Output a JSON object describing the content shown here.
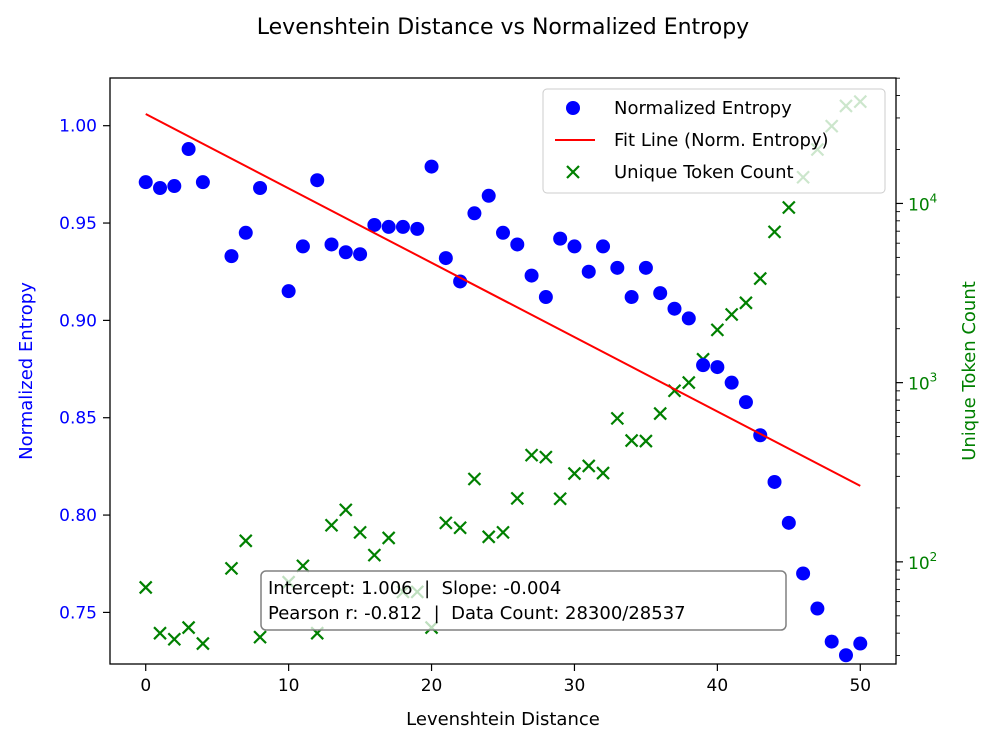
{
  "chart_data": {
    "type": "scatter",
    "title": "Levenshtein Distance vs Normalized Entropy",
    "xlabel": "Levenshtein Distance",
    "ylabel": "Normalized Entropy",
    "y2label": "Unique Token Count",
    "xlim": [
      -2.5,
      52.5
    ],
    "ylim": [
      0.7235,
      1.0245
    ],
    "y2lim_log10": [
      1.43,
      4.7
    ],
    "y2_scale": "log",
    "x_ticks": [
      0,
      10,
      20,
      30,
      40,
      50
    ],
    "y_ticks": [
      0.75,
      0.8,
      0.85,
      0.9,
      0.95,
      1.0
    ],
    "y2_ticks": [
      {
        "value": 100,
        "label": "10",
        "exp": "2"
      },
      {
        "value": 1000,
        "label": "10",
        "exp": "3"
      },
      {
        "value": 10000,
        "label": "10",
        "exp": "4"
      }
    ],
    "colors": {
      "entropy": "#0000ff",
      "fit": "#ff0000",
      "tokens": "#008000"
    },
    "legend_position": "top-right",
    "legend": [
      "Normalized Entropy",
      "Fit Line (Norm. Entropy)",
      "Unique Token Count"
    ],
    "fit_line": {
      "x": [
        0,
        50
      ],
      "y": [
        1.006,
        0.815
      ]
    },
    "annotation": {
      "line1": "Intercept: 1.006  |  Slope: -0.004",
      "line2": "Pearson r: -0.812  |  Data Count: 28300/28537"
    },
    "series": [
      {
        "name": "Normalized Entropy",
        "x": [
          0,
          1,
          2,
          3,
          4,
          6,
          7,
          8,
          10,
          11,
          12,
          13,
          14,
          15,
          16,
          17,
          18,
          19,
          20,
          21,
          22,
          23,
          24,
          25,
          26,
          27,
          28,
          29,
          30,
          31,
          32,
          33,
          34,
          35,
          36,
          37,
          38,
          39,
          40,
          41,
          42,
          43,
          44,
          45,
          46,
          47,
          48,
          49,
          50
        ],
        "y": [
          0.971,
          0.968,
          0.969,
          0.988,
          0.971,
          0.933,
          0.945,
          0.968,
          0.915,
          0.938,
          0.972,
          0.939,
          0.935,
          0.934,
          0.949,
          0.948,
          0.948,
          0.947,
          0.979,
          0.932,
          0.92,
          0.955,
          0.964,
          0.945,
          0.939,
          0.923,
          0.912,
          0.942,
          0.938,
          0.925,
          0.938,
          0.927,
          0.912,
          0.927,
          0.914,
          0.906,
          0.901,
          0.877,
          0.876,
          0.868,
          0.858,
          0.841,
          0.817,
          0.796,
          0.77,
          0.752,
          0.735,
          0.728,
          0.734
        ]
      },
      {
        "name": "Unique Token Count",
        "x": [
          0,
          1,
          2,
          3,
          4,
          6,
          7,
          8,
          10,
          11,
          12,
          13,
          14,
          15,
          16,
          17,
          18,
          19,
          20,
          21,
          22,
          23,
          24,
          25,
          26,
          27,
          28,
          29,
          30,
          31,
          32,
          33,
          34,
          35,
          36,
          37,
          38,
          39,
          40,
          41,
          42,
          43,
          44,
          45,
          46,
          47,
          48,
          49,
          50
        ],
        "y": [
          72,
          40,
          37,
          43,
          35,
          92,
          131,
          38,
          77,
          95,
          40,
          160,
          195,
          146,
          109,
          136,
          68,
          68,
          43,
          165,
          155,
          290,
          138,
          146,
          226,
          394,
          384,
          225,
          311,
          343,
          313,
          632,
          475,
          472,
          672,
          901,
          1001,
          1350,
          1970,
          2401,
          2790,
          3809,
          6940,
          9490,
          14000,
          20000,
          27000,
          35000,
          37000
        ]
      }
    ]
  }
}
